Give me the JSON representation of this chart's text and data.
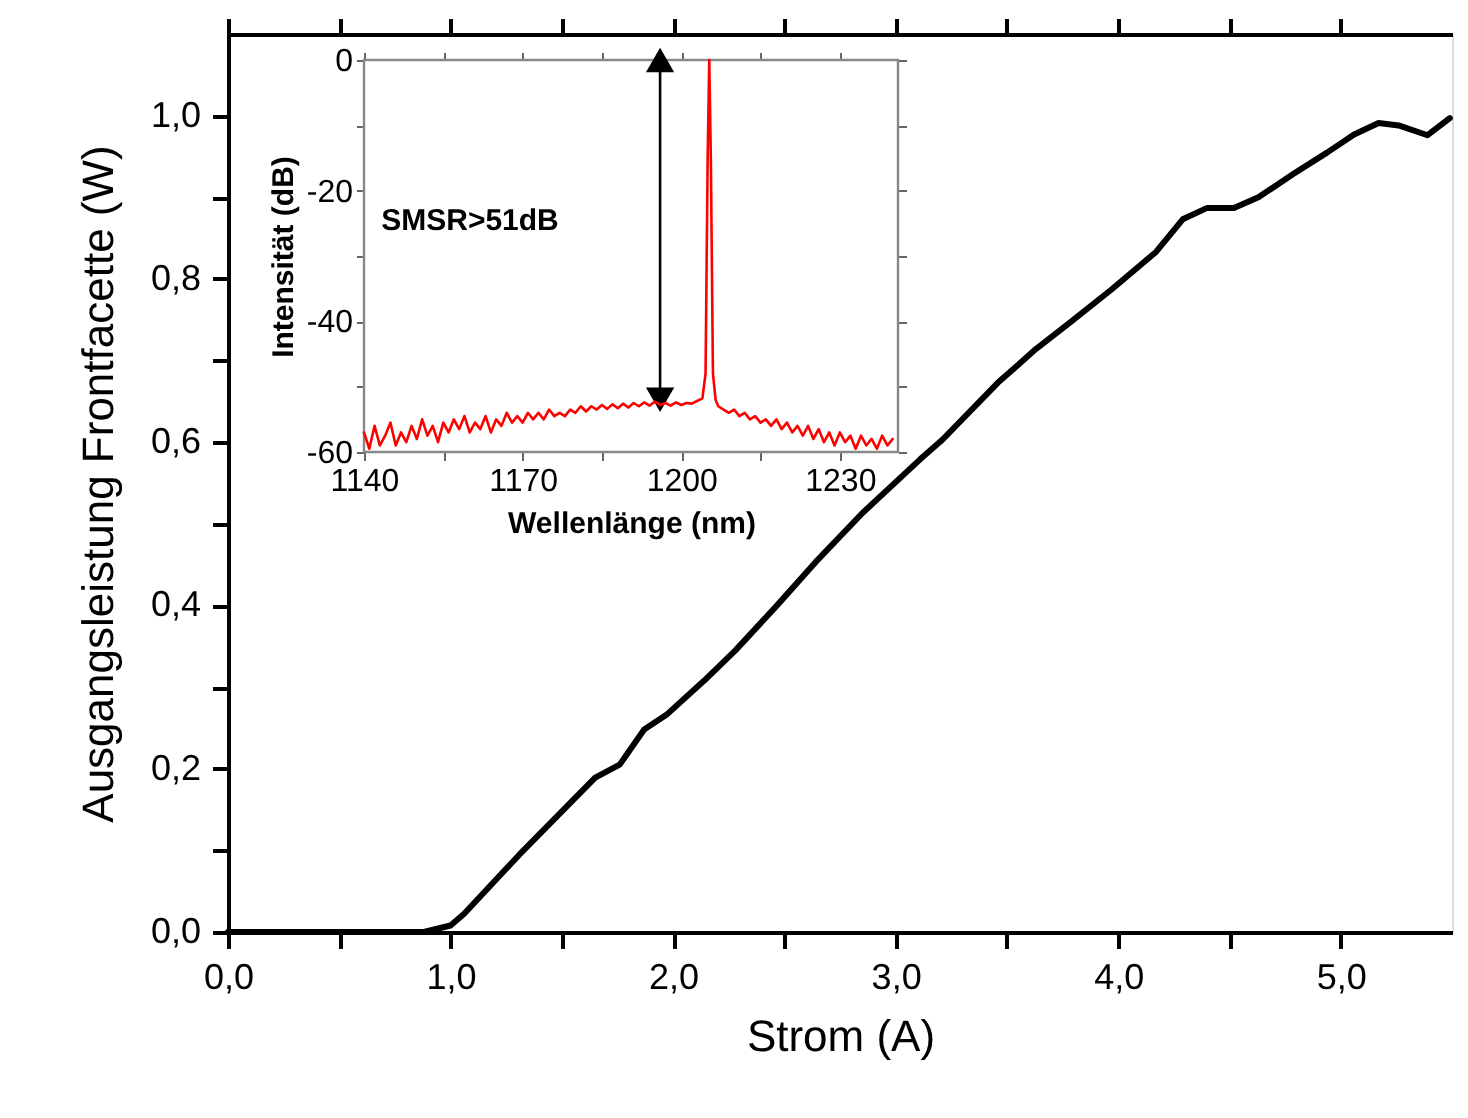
{
  "chart_data": [
    {
      "type": "line",
      "xlabel": "Strom (A)",
      "ylabel": "Ausgangsleistung Frontfacette (W)",
      "grid": false,
      "marker": "none",
      "line_style": "solid",
      "xlim": [
        0,
        5.5
      ],
      "ylim": [
        0,
        1.1
      ],
      "xticks": [
        {
          "value": 0,
          "label": "0,0"
        },
        {
          "value": 0.5,
          "label": null
        },
        {
          "value": 1,
          "label": "1,0"
        },
        {
          "value": 1.5,
          "label": null
        },
        {
          "value": 2,
          "label": "2,0"
        },
        {
          "value": 2.5,
          "label": null
        },
        {
          "value": 3,
          "label": "3,0"
        },
        {
          "value": 3.5,
          "label": null
        },
        {
          "value": 4,
          "label": "4,0"
        },
        {
          "value": 4.5,
          "label": null
        },
        {
          "value": 5,
          "label": "5,0"
        }
      ],
      "yticks": [
        {
          "value": 0,
          "label": "0,0"
        },
        {
          "value": 0.1,
          "label": null
        },
        {
          "value": 0.2,
          "label": "0,2"
        },
        {
          "value": 0.3,
          "label": null
        },
        {
          "value": 0.4,
          "label": "0,4"
        },
        {
          "value": 0.5,
          "label": null
        },
        {
          "value": 0.6,
          "label": "0,6"
        },
        {
          "value": 0.7,
          "label": null
        },
        {
          "value": 0.8,
          "label": "0,8"
        },
        {
          "value": 0.9,
          "label": null
        },
        {
          "value": 1.0,
          "label": "1,0"
        }
      ],
      "series": [
        {
          "color": "#000000",
          "x": [
            0,
            0.88,
            1.0,
            1.06,
            1.31,
            1.65,
            1.76,
            1.87,
            1.97,
            2.14,
            2.28,
            2.46,
            2.64,
            2.85,
            3.11,
            3.21,
            3.46,
            3.63,
            3.79,
            3.97,
            4.17,
            4.29,
            4.4,
            4.52,
            4.63,
            4.79,
            4.94,
            5.06,
            5.17,
            5.26,
            5.39,
            5.49
          ],
          "values": [
            0,
            0,
            0.008,
            0.022,
            0.095,
            0.189,
            0.205,
            0.248,
            0.266,
            0.308,
            0.345,
            0.398,
            0.453,
            0.513,
            0.579,
            0.603,
            0.673,
            0.714,
            0.748,
            0.787,
            0.833,
            0.873,
            0.887,
            0.887,
            0.9,
            0.929,
            0.955,
            0.977,
            0.991,
            0.988,
            0.976,
            0.997
          ]
        }
      ]
    },
    {
      "type": "line",
      "xlabel": "Wellenlänge (nm)",
      "ylabel": "Intensität (dB)",
      "grid": false,
      "marker": "none",
      "line_style": "solid",
      "xlim": [
        1140,
        1241
      ],
      "ylim": [
        -60,
        0
      ],
      "xticks": [
        1140,
        {
          "value": 1155,
          "label": null
        },
        1170,
        {
          "value": 1185,
          "label": null
        },
        1200,
        {
          "value": 1215,
          "label": null
        },
        1230
      ],
      "yticks": [
        -60,
        {
          "value": -50,
          "label": null
        },
        -40,
        {
          "value": -30,
          "label": null
        },
        -20,
        {
          "value": -10,
          "label": null
        },
        0
      ],
      "annotations": [
        "SMSR>51dB"
      ],
      "series": [
        {
          "type": "line",
          "color": "#000000",
          "marker": "triangle",
          "x": [
            1196,
            1196
          ],
          "values": [
            0,
            -52
          ]
        },
        {
          "color": "#ff0000",
          "x": [
            1140,
            1141,
            1142,
            1143,
            1144,
            1145,
            1146,
            1147,
            1148,
            1149,
            1150,
            1151,
            1152,
            1153,
            1154,
            1155,
            1156,
            1157,
            1158,
            1159,
            1160,
            1161,
            1162,
            1163,
            1164,
            1165,
            1166,
            1167,
            1168,
            1169,
            1170,
            1171,
            1172,
            1173,
            1174,
            1175,
            1176,
            1177,
            1178,
            1179,
            1180,
            1181,
            1182,
            1183,
            1184,
            1185,
            1186,
            1187,
            1188,
            1189,
            1190,
            1191,
            1192,
            1193,
            1194,
            1195,
            1196,
            1197,
            1198,
            1199,
            1200,
            1201,
            1202,
            1203,
            1204,
            1204.6,
            1205,
            1205.3,
            1205.6,
            1206,
            1206.5,
            1207,
            1208,
            1209,
            1210,
            1211,
            1212,
            1213,
            1214,
            1215,
            1216,
            1217,
            1218,
            1219,
            1220,
            1221,
            1222,
            1223,
            1224,
            1225,
            1226,
            1227,
            1228,
            1229,
            1230,
            1231,
            1232,
            1233,
            1234,
            1235,
            1236,
            1237,
            1238,
            1239,
            1240
          ],
          "values": [
            -57,
            -59.5,
            -56,
            -59,
            -57.5,
            -55.5,
            -59,
            -57,
            -58.5,
            -56,
            -58,
            -55,
            -57.5,
            -56,
            -58.5,
            -55.5,
            -57,
            -55,
            -56.5,
            -54.5,
            -57,
            -55.5,
            -56.5,
            -54.5,
            -57,
            -55,
            -56,
            -54,
            -55.5,
            -54.5,
            -55.5,
            -54,
            -55,
            -54,
            -55,
            -53.5,
            -54.5,
            -54,
            -54.5,
            -53.5,
            -54,
            -53,
            -53.8,
            -53,
            -53.5,
            -52.8,
            -53.4,
            -52.7,
            -53.3,
            -52.6,
            -53.2,
            -52.5,
            -53,
            -52.4,
            -52.9,
            -52.3,
            -52.8,
            -52.5,
            -52.9,
            -52.4,
            -52.8,
            -52.5,
            -52.6,
            -52.2,
            -51.8,
            -48,
            -15,
            0,
            -15,
            -48,
            -52,
            -53,
            -53.5,
            -54,
            -53.5,
            -54.5,
            -54,
            -55,
            -54.5,
            -55.5,
            -55,
            -56,
            -55,
            -56.5,
            -55.5,
            -57,
            -56,
            -57.5,
            -56,
            -58,
            -56.5,
            -58.5,
            -57,
            -59,
            -57,
            -58.5,
            -57.5,
            -59.5,
            -57.5,
            -59,
            -58,
            -59.5,
            -57.5,
            -59,
            -58
          ]
        }
      ]
    }
  ]
}
